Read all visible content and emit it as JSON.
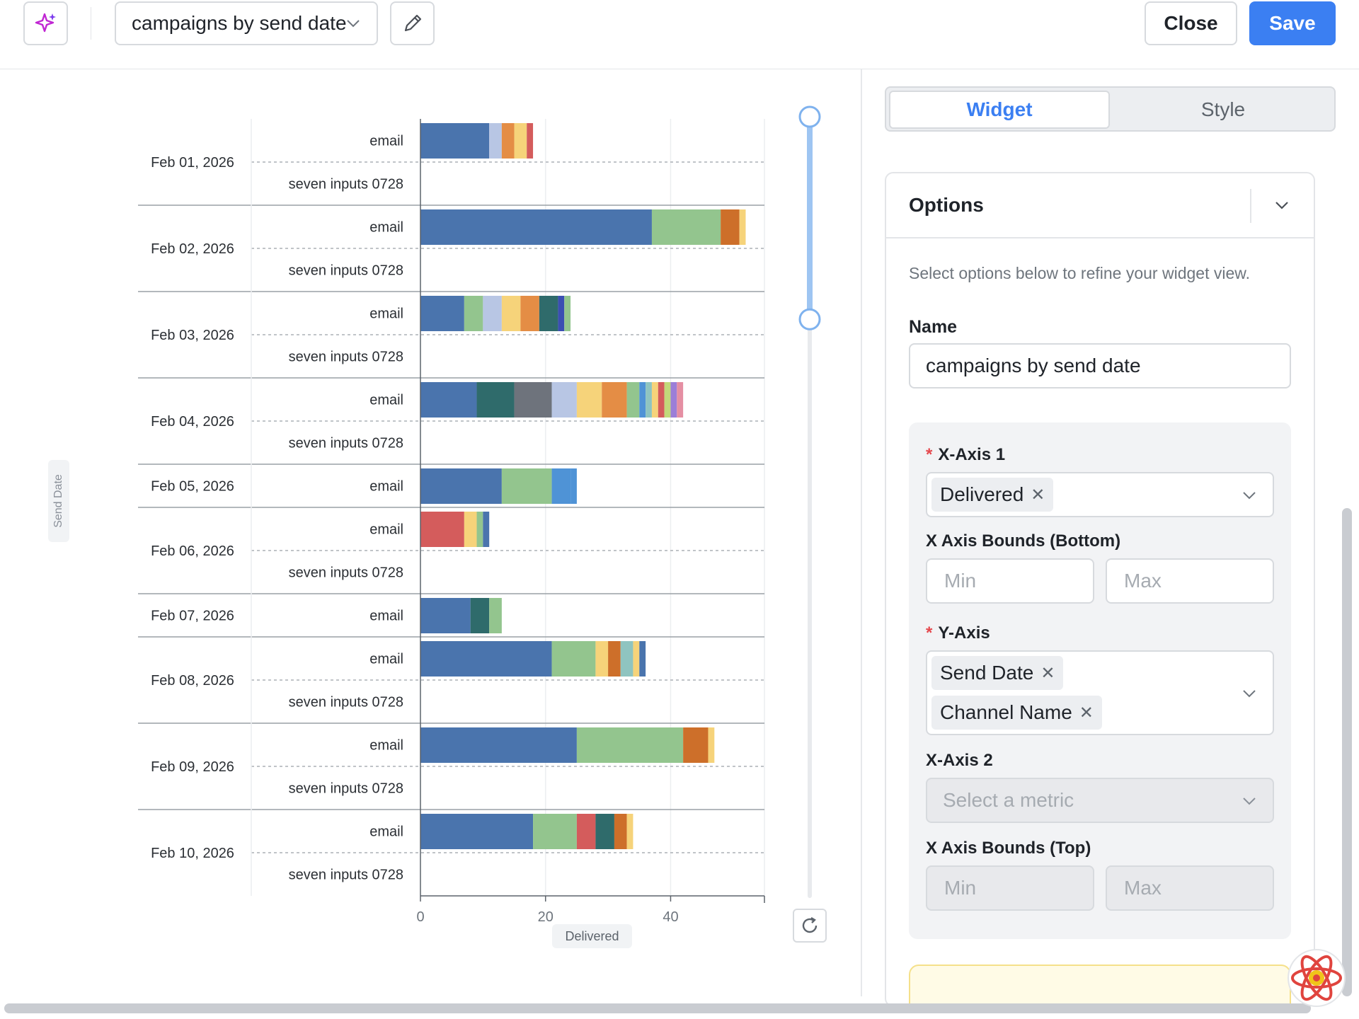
{
  "toolbar": {
    "ai_icon": "sparkle-icon",
    "widget_title": "campaigns by send date",
    "edit_icon": "pencil-icon",
    "close_label": "Close",
    "save_label": "Save"
  },
  "colors": {
    "accent": "#3b7ff2",
    "segments": [
      "#4a74ad",
      "#93c58e",
      "#b8c6e4",
      "#f6d37a",
      "#e48d45",
      "#2f6b6b",
      "#6e737c",
      "#cd6f2a",
      "#d45c5c",
      "#4f93d6",
      "#3b4fb2",
      "#8fc4c0",
      "#c2d97a",
      "#9b7ed8",
      "#e58fa3"
    ]
  },
  "chart_data": {
    "type": "bar",
    "orientation": "horizontal",
    "stacked": true,
    "xlabel": "Delivered",
    "ylabel": "Send Date",
    "xlim": [
      0,
      55
    ],
    "xticks": [
      0,
      20,
      40
    ],
    "grid": true,
    "groups": [
      {
        "date": "Feb 01, 2026",
        "rows": [
          {
            "channel": "email",
            "segments": [
              {
                "value": 11,
                "color": "#4a74ad"
              },
              {
                "value": 2,
                "color": "#b8c6e4"
              },
              {
                "value": 2,
                "color": "#e48d45"
              },
              {
                "value": 2,
                "color": "#f6d37a"
              },
              {
                "value": 1,
                "color": "#d45c5c"
              }
            ]
          },
          {
            "channel": "seven inputs 0728",
            "segments": []
          }
        ]
      },
      {
        "date": "Feb 02, 2026",
        "rows": [
          {
            "channel": "email",
            "segments": [
              {
                "value": 37,
                "color": "#4a74ad"
              },
              {
                "value": 11,
                "color": "#93c58e"
              },
              {
                "value": 3,
                "color": "#cd6f2a"
              },
              {
                "value": 1,
                "color": "#f6d37a"
              }
            ]
          },
          {
            "channel": "seven inputs 0728",
            "segments": []
          }
        ]
      },
      {
        "date": "Feb 03, 2026",
        "rows": [
          {
            "channel": "email",
            "segments": [
              {
                "value": 7,
                "color": "#4a74ad"
              },
              {
                "value": 3,
                "color": "#93c58e"
              },
              {
                "value": 3,
                "color": "#b8c6e4"
              },
              {
                "value": 3,
                "color": "#f6d37a"
              },
              {
                "value": 3,
                "color": "#e48d45"
              },
              {
                "value": 3,
                "color": "#2f6b6b"
              },
              {
                "value": 1,
                "color": "#3b4fb2"
              },
              {
                "value": 1,
                "color": "#93c58e"
              }
            ]
          },
          {
            "channel": "seven inputs 0728",
            "segments": []
          }
        ]
      },
      {
        "date": "Feb 04, 2026",
        "rows": [
          {
            "channel": "email",
            "segments": [
              {
                "value": 9,
                "color": "#4a74ad"
              },
              {
                "value": 6,
                "color": "#2f6b6b"
              },
              {
                "value": 6,
                "color": "#6e737c"
              },
              {
                "value": 4,
                "color": "#b8c6e4"
              },
              {
                "value": 4,
                "color": "#f6d37a"
              },
              {
                "value": 4,
                "color": "#e48d45"
              },
              {
                "value": 2,
                "color": "#93c58e"
              },
              {
                "value": 1,
                "color": "#4f93d6"
              },
              {
                "value": 1,
                "color": "#8fc4c0"
              },
              {
                "value": 1,
                "color": "#f6d37a"
              },
              {
                "value": 1,
                "color": "#d45c5c"
              },
              {
                "value": 1,
                "color": "#c2d97a"
              },
              {
                "value": 1,
                "color": "#9b7ed8"
              },
              {
                "value": 1,
                "color": "#e58fa3"
              }
            ]
          },
          {
            "channel": "seven inputs 0728",
            "segments": []
          }
        ]
      },
      {
        "date": "Feb 05, 2026",
        "rows": [
          {
            "channel": "email",
            "segments": [
              {
                "value": 13,
                "color": "#4a74ad"
              },
              {
                "value": 8,
                "color": "#93c58e"
              },
              {
                "value": 3,
                "color": "#4f93d6"
              },
              {
                "value": 1,
                "color": "#4f93d6"
              }
            ]
          }
        ]
      },
      {
        "date": "Feb 06, 2026",
        "rows": [
          {
            "channel": "email",
            "segments": [
              {
                "value": 7,
                "color": "#d45c5c"
              },
              {
                "value": 2,
                "color": "#f6d37a"
              },
              {
                "value": 1,
                "color": "#93c58e"
              },
              {
                "value": 1,
                "color": "#4a74ad"
              }
            ]
          },
          {
            "channel": "seven inputs 0728",
            "segments": []
          }
        ]
      },
      {
        "date": "Feb 07, 2026",
        "rows": [
          {
            "channel": "email",
            "segments": [
              {
                "value": 8,
                "color": "#4a74ad"
              },
              {
                "value": 3,
                "color": "#2f6b6b"
              },
              {
                "value": 2,
                "color": "#93c58e"
              }
            ]
          }
        ]
      },
      {
        "date": "Feb 08, 2026",
        "rows": [
          {
            "channel": "email",
            "segments": [
              {
                "value": 21,
                "color": "#4a74ad"
              },
              {
                "value": 7,
                "color": "#93c58e"
              },
              {
                "value": 2,
                "color": "#f6d37a"
              },
              {
                "value": 2,
                "color": "#cd6f2a"
              },
              {
                "value": 2,
                "color": "#8fc4c0"
              },
              {
                "value": 1,
                "color": "#f6d37a"
              },
              {
                "value": 1,
                "color": "#4a74ad"
              }
            ]
          },
          {
            "channel": "seven inputs 0728",
            "segments": []
          }
        ]
      },
      {
        "date": "Feb 09, 2026",
        "rows": [
          {
            "channel": "email",
            "segments": [
              {
                "value": 25,
                "color": "#4a74ad"
              },
              {
                "value": 17,
                "color": "#93c58e"
              },
              {
                "value": 4,
                "color": "#cd6f2a"
              },
              {
                "value": 1,
                "color": "#f6d37a"
              }
            ]
          },
          {
            "channel": "seven inputs 0728",
            "segments": []
          }
        ]
      },
      {
        "date": "Feb 10, 2026",
        "rows": [
          {
            "channel": "email",
            "segments": [
              {
                "value": 18,
                "color": "#4a74ad"
              },
              {
                "value": 7,
                "color": "#93c58e"
              },
              {
                "value": 3,
                "color": "#d45c5c"
              },
              {
                "value": 3,
                "color": "#2f6b6b"
              },
              {
                "value": 2,
                "color": "#cd6f2a"
              },
              {
                "value": 1,
                "color": "#f6d37a"
              }
            ]
          },
          {
            "channel": "seven inputs 0728",
            "segments": []
          }
        ]
      }
    ]
  },
  "slider": {
    "range_start": 0,
    "range_end": 0.26
  },
  "panel": {
    "tabs": [
      {
        "label": "Widget",
        "active": true
      },
      {
        "label": "Style",
        "active": false
      }
    ],
    "options_title": "Options",
    "hint": "Select options below to refine your widget view.",
    "name_label": "Name",
    "name_value": "campaigns by send date",
    "x_axis_1_label": "X-Axis 1",
    "x_axis_1_tags": [
      "Delivered"
    ],
    "x_bounds_bottom_label": "X Axis Bounds (Bottom)",
    "min_placeholder": "Min",
    "max_placeholder": "Max",
    "y_axis_label": "Y-Axis",
    "y_axis_tags": [
      "Send Date",
      "Channel Name"
    ],
    "x_axis_2_label": "X-Axis 2",
    "x_axis_2_placeholder": "Select a metric",
    "x_bounds_top_label": "X Axis Bounds (Top)"
  }
}
